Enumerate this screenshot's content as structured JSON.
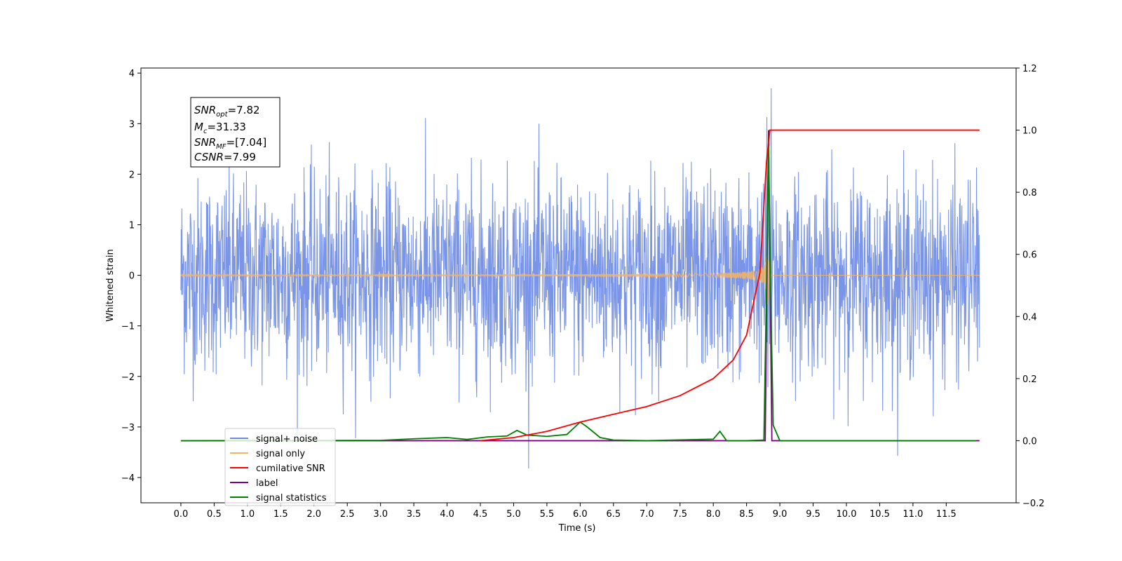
{
  "chart_data": {
    "type": "line",
    "xlabel": "Time (s)",
    "ylabel": "Whitened strain",
    "ylabel_right": "",
    "xlim": [
      -0.6,
      12.55
    ],
    "ylim": [
      -4.5,
      4.1
    ],
    "ylim_right": [
      -0.2,
      1.2
    ],
    "xticks": [
      "0.0",
      "0.5",
      "1.0",
      "1.5",
      "2.0",
      "2.5",
      "3.0",
      "3.5",
      "4.0",
      "4.5",
      "5.0",
      "5.5",
      "6.0",
      "6.5",
      "7.0",
      "7.5",
      "8.0",
      "8.5",
      "9.0",
      "9.5",
      "10.0",
      "10.5",
      "11.0",
      "11.5"
    ],
    "yticks_left": [
      "4",
      "3",
      "2",
      "1",
      "0",
      "−1",
      "−2",
      "−3",
      "−4"
    ],
    "yticks_right": [
      "1.2",
      "1.0",
      "0.8",
      "0.6",
      "0.4",
      "0.2",
      "0.0",
      "−0.2"
    ],
    "annotation": {
      "snr_opt": {
        "name": "SNR",
        "sub": "opt",
        "value": "=7.82"
      },
      "mc": {
        "name": "M",
        "sub": "c",
        "value": "=31.33"
      },
      "snr_mf": {
        "name": "SNR",
        "sub": "MF",
        "value": "=[7.04]"
      },
      "csnr": {
        "name": "CSNR",
        "value": "=7.99"
      }
    },
    "series": [
      {
        "name": "signal+ noise",
        "axis": "left",
        "color": "#6b8ae6",
        "description_values": {
          "x_range": [
            0.0,
            12.0
          ],
          "typical_amplitude": 1.6,
          "min": -4.1,
          "max": 3.7
        }
      },
      {
        "name": "signal only",
        "axis": "left",
        "color": "#f5b461",
        "description_values": {
          "merger_time": 8.82,
          "peak_amplitude": 0.95
        }
      },
      {
        "name": "cumilative SNR",
        "axis": "right",
        "color": "#ff0000",
        "x": [
          4.5,
          5.0,
          5.5,
          6.0,
          6.5,
          7.0,
          7.5,
          8.0,
          8.3,
          8.5,
          8.7,
          8.8,
          8.85,
          12.0
        ],
        "values": [
          0.0,
          0.01,
          0.03,
          0.06,
          0.085,
          0.11,
          0.145,
          0.2,
          0.26,
          0.34,
          0.54,
          0.9,
          1.0,
          1.0
        ]
      },
      {
        "name": "label",
        "axis": "right",
        "color": "#800080",
        "x": [
          0.0,
          8.78,
          8.83,
          8.88,
          12.0
        ],
        "values": [
          0.0,
          0.0,
          1.0,
          0.0,
          0.0
        ]
      },
      {
        "name": "signal statistics",
        "axis": "right",
        "color": "#008000",
        "x": [
          0.0,
          3.0,
          3.5,
          4.0,
          4.3,
          4.6,
          4.9,
          5.05,
          5.2,
          5.5,
          5.8,
          6.0,
          6.1,
          6.3,
          6.5,
          7.0,
          8.0,
          8.1,
          8.2,
          8.5,
          8.76,
          8.8,
          8.83,
          8.86,
          8.9,
          9.0,
          11.95
        ],
        "values": [
          0.0,
          0.001,
          0.006,
          0.01,
          0.004,
          0.012,
          0.015,
          0.033,
          0.018,
          0.014,
          0.02,
          0.06,
          0.045,
          0.01,
          0.002,
          0.0,
          0.005,
          0.03,
          0.0,
          0.0,
          0.002,
          0.5,
          0.95,
          0.5,
          0.05,
          0.0,
          0.0
        ]
      }
    ],
    "legend": {
      "placement": "lower-left",
      "entries": [
        {
          "label": "signal+ noise",
          "color": "#6b8ae6"
        },
        {
          "label": "signal only",
          "color": "#f5b461"
        },
        {
          "label": "cumilative SNR",
          "color": "#ff0000"
        },
        {
          "label": "label",
          "color": "#800080"
        },
        {
          "label": "signal statistics",
          "color": "#008000"
        }
      ]
    },
    "grid": false
  }
}
